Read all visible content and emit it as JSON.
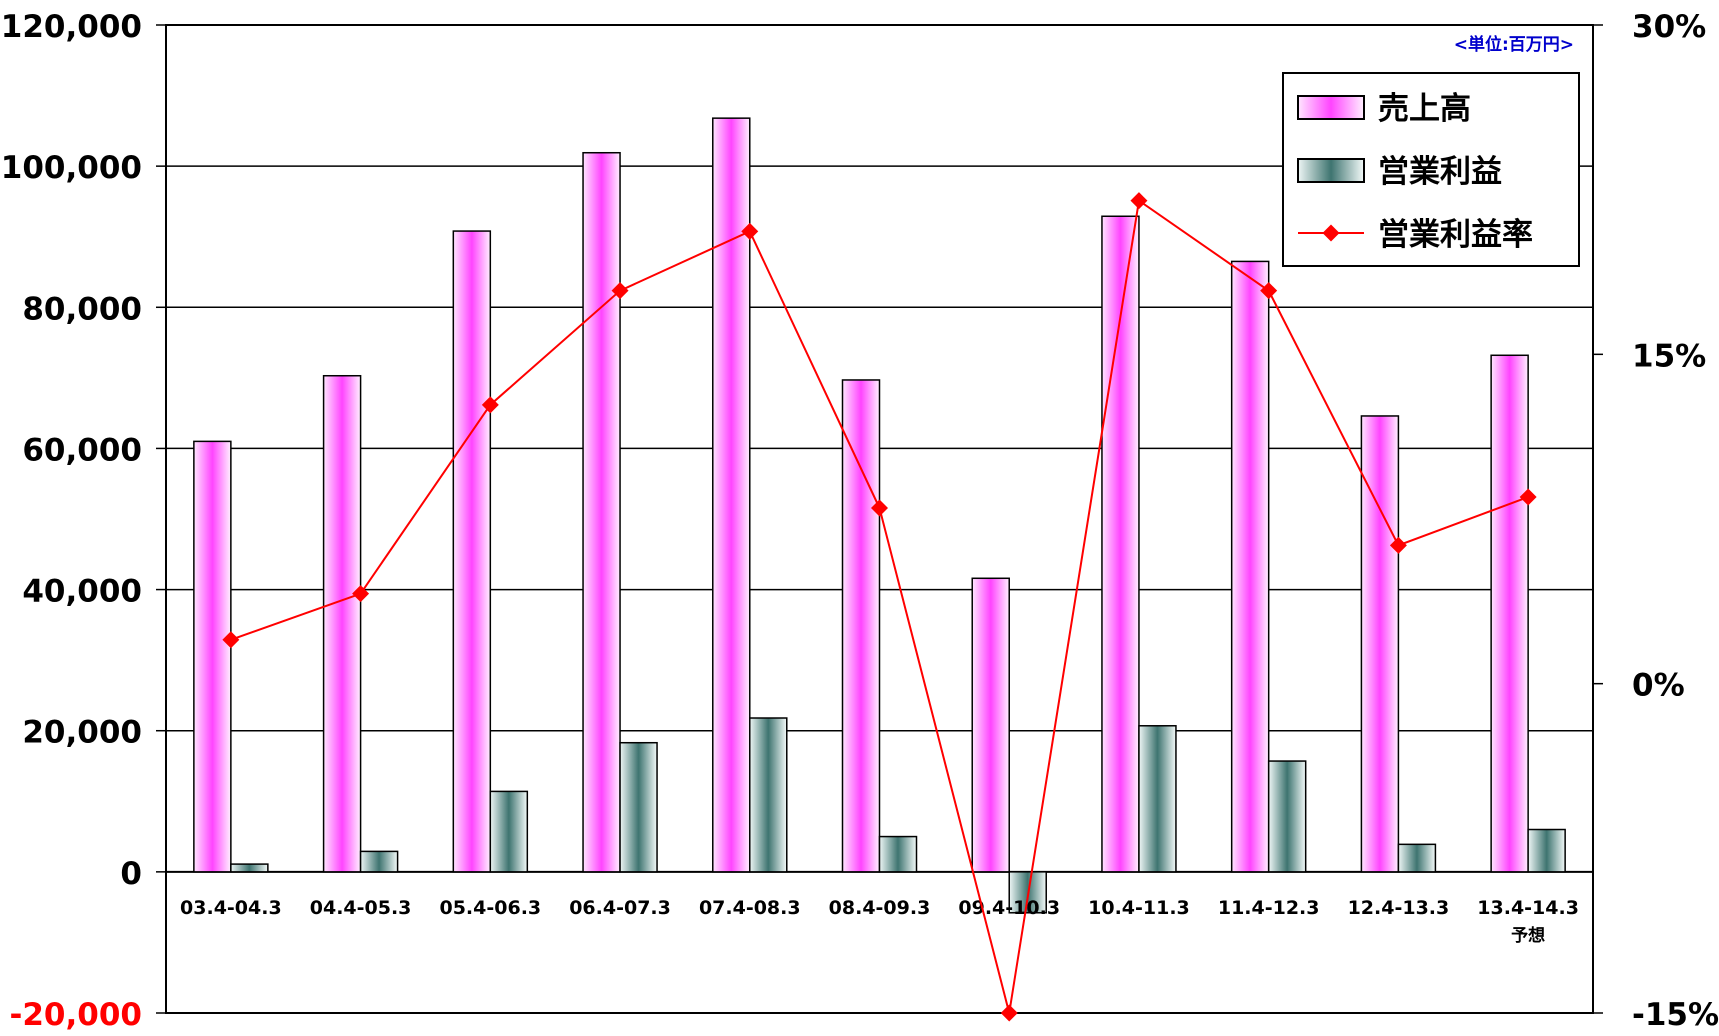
{
  "chart_data": {
    "type": "bar",
    "unit_note": "<単位:百万円>",
    "categories": [
      "03.4-04.3",
      "04.4-05.3",
      "05.4-06.3",
      "06.4-07.3",
      "07.4-08.3",
      "08.4-09.3",
      "09.4-10.3",
      "10.4-11.3",
      "11.4-12.3",
      "12.4-13.3",
      "13.4-14.3"
    ],
    "category_notes": [
      "",
      "",
      "",
      "",
      "",
      "",
      "",
      "",
      "",
      "",
      "予想"
    ],
    "series": [
      {
        "name": "売上高",
        "kind": "bar",
        "axis": "left",
        "color": "#ff66ff",
        "values": [
          61000,
          70300,
          90800,
          101900,
          106800,
          69700,
          41600,
          92900,
          86500,
          64600,
          73200
        ]
      },
      {
        "name": "営業利益",
        "kind": "bar",
        "axis": "left",
        "color": "#5f9490",
        "values": [
          1100,
          2900,
          11400,
          18300,
          21800,
          5000,
          -5800,
          20700,
          15700,
          3900,
          6000
        ]
      },
      {
        "name": "営業利益率",
        "kind": "line",
        "axis": "right",
        "color": "#ff0000",
        "values": [
          2.0,
          4.1,
          12.7,
          17.9,
          20.6,
          8.0,
          -15.0,
          22.0,
          17.9,
          6.3,
          8.5
        ]
      }
    ],
    "y_left": {
      "lim": [
        -20000,
        120000
      ],
      "ticks": [
        -20000,
        0,
        20000,
        40000,
        60000,
        80000,
        100000,
        120000
      ],
      "tick_labels": [
        "-20,000",
        "0",
        "20,000",
        "40,000",
        "60,000",
        "80,000",
        "100,000",
        "120,000"
      ],
      "negative_label_color": "#ff0000"
    },
    "y_right": {
      "lim": [
        -15,
        30
      ],
      "ticks": [
        -15,
        0,
        15,
        30
      ],
      "tick_labels": [
        "-15%",
        "0%",
        "15%",
        "30%"
      ]
    },
    "grid": true,
    "legend_position": "top-right"
  }
}
